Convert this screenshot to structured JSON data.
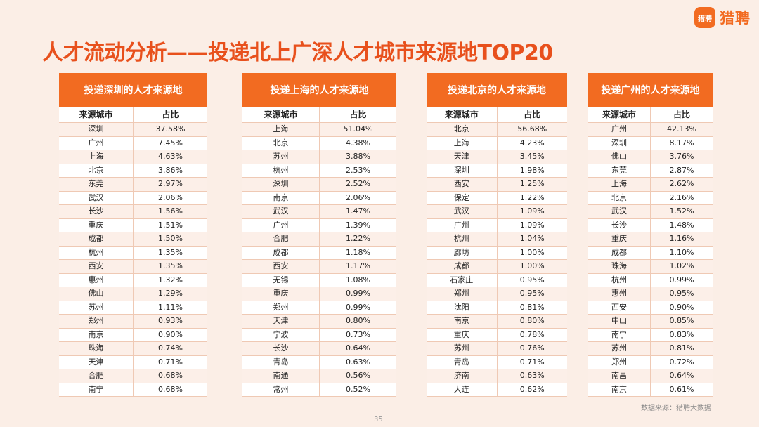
{
  "brand": {
    "mark": "猎聘",
    "name": "猎聘"
  },
  "title": "人才流动分析——投递北上广深人才城市来源地TOP20",
  "headers": {
    "city": "来源城市",
    "share": "占比"
  },
  "panels": [
    {
      "title": "投递深圳的人才来源地",
      "rows": [
        {
          "city": "深圳",
          "share": "37.58%"
        },
        {
          "city": "广州",
          "share": "7.45%"
        },
        {
          "city": "上海",
          "share": "4.63%"
        },
        {
          "city": "北京",
          "share": "3.86%"
        },
        {
          "city": "东莞",
          "share": "2.97%"
        },
        {
          "city": "武汉",
          "share": "2.06%"
        },
        {
          "city": "长沙",
          "share": "1.56%"
        },
        {
          "city": "重庆",
          "share": "1.51%"
        },
        {
          "city": "成都",
          "share": "1.50%"
        },
        {
          "city": "杭州",
          "share": "1.35%"
        },
        {
          "city": "西安",
          "share": "1.35%"
        },
        {
          "city": "惠州",
          "share": "1.32%"
        },
        {
          "city": "佛山",
          "share": "1.29%"
        },
        {
          "city": "苏州",
          "share": "1.11%"
        },
        {
          "city": "郑州",
          "share": "0.93%"
        },
        {
          "city": "南京",
          "share": "0.90%"
        },
        {
          "city": "珠海",
          "share": "0.74%"
        },
        {
          "city": "天津",
          "share": "0.71%"
        },
        {
          "city": "合肥",
          "share": "0.68%"
        },
        {
          "city": "南宁",
          "share": "0.68%"
        }
      ]
    },
    {
      "title": "投递上海的人才来源地",
      "rows": [
        {
          "city": "上海",
          "share": "51.04%"
        },
        {
          "city": "北京",
          "share": "4.38%"
        },
        {
          "city": "苏州",
          "share": "3.88%"
        },
        {
          "city": "杭州",
          "share": "2.53%"
        },
        {
          "city": "深圳",
          "share": "2.52%"
        },
        {
          "city": "南京",
          "share": "2.06%"
        },
        {
          "city": "武汉",
          "share": "1.47%"
        },
        {
          "city": "广州",
          "share": "1.39%"
        },
        {
          "city": "合肥",
          "share": "1.22%"
        },
        {
          "city": "成都",
          "share": "1.18%"
        },
        {
          "city": "西安",
          "share": "1.17%"
        },
        {
          "city": "无锡",
          "share": "1.08%"
        },
        {
          "city": "重庆",
          "share": "0.99%"
        },
        {
          "city": "郑州",
          "share": "0.99%"
        },
        {
          "city": "天津",
          "share": "0.80%"
        },
        {
          "city": "宁波",
          "share": "0.73%"
        },
        {
          "city": "长沙",
          "share": "0.64%"
        },
        {
          "city": "青岛",
          "share": "0.63%"
        },
        {
          "city": "南通",
          "share": "0.56%"
        },
        {
          "city": "常州",
          "share": "0.52%"
        }
      ]
    },
    {
      "title": "投递北京的人才来源地",
      "rows": [
        {
          "city": "北京",
          "share": "56.68%"
        },
        {
          "city": "上海",
          "share": "4.23%"
        },
        {
          "city": "天津",
          "share": "3.45%"
        },
        {
          "city": "深圳",
          "share": "1.98%"
        },
        {
          "city": "西安",
          "share": "1.25%"
        },
        {
          "city": "保定",
          "share": "1.22%"
        },
        {
          "city": "武汉",
          "share": "1.09%"
        },
        {
          "city": "广州",
          "share": "1.09%"
        },
        {
          "city": "杭州",
          "share": "1.04%"
        },
        {
          "city": "廊坊",
          "share": "1.00%"
        },
        {
          "city": "成都",
          "share": "1.00%"
        },
        {
          "city": "石家庄",
          "share": "0.95%"
        },
        {
          "city": "郑州",
          "share": "0.95%"
        },
        {
          "city": "沈阳",
          "share": "0.81%"
        },
        {
          "city": "南京",
          "share": "0.80%"
        },
        {
          "city": "重庆",
          "share": "0.78%"
        },
        {
          "city": "苏州",
          "share": "0.76%"
        },
        {
          "city": "青岛",
          "share": "0.71%"
        },
        {
          "city": "济南",
          "share": "0.63%"
        },
        {
          "city": "大连",
          "share": "0.62%"
        }
      ]
    },
    {
      "title": "投递广州的人才来源地",
      "rows": [
        {
          "city": "广州",
          "share": "42.13%"
        },
        {
          "city": "深圳",
          "share": "8.17%"
        },
        {
          "city": "佛山",
          "share": "3.76%"
        },
        {
          "city": "东莞",
          "share": "2.87%"
        },
        {
          "city": "上海",
          "share": "2.62%"
        },
        {
          "city": "北京",
          "share": "2.16%"
        },
        {
          "city": "武汉",
          "share": "1.52%"
        },
        {
          "city": "长沙",
          "share": "1.48%"
        },
        {
          "city": "重庆",
          "share": "1.16%"
        },
        {
          "city": "成都",
          "share": "1.10%"
        },
        {
          "city": "珠海",
          "share": "1.02%"
        },
        {
          "city": "杭州",
          "share": "0.99%"
        },
        {
          "city": "惠州",
          "share": "0.95%"
        },
        {
          "city": "西安",
          "share": "0.90%"
        },
        {
          "city": "中山",
          "share": "0.85%"
        },
        {
          "city": "南宁",
          "share": "0.83%"
        },
        {
          "city": "苏州",
          "share": "0.81%"
        },
        {
          "city": "郑州",
          "share": "0.72%"
        },
        {
          "city": "南昌",
          "share": "0.64%"
        },
        {
          "city": "南京",
          "share": "0.61%"
        }
      ]
    }
  ],
  "source": "数据来源：猎聘大数据",
  "page_number": "35"
}
